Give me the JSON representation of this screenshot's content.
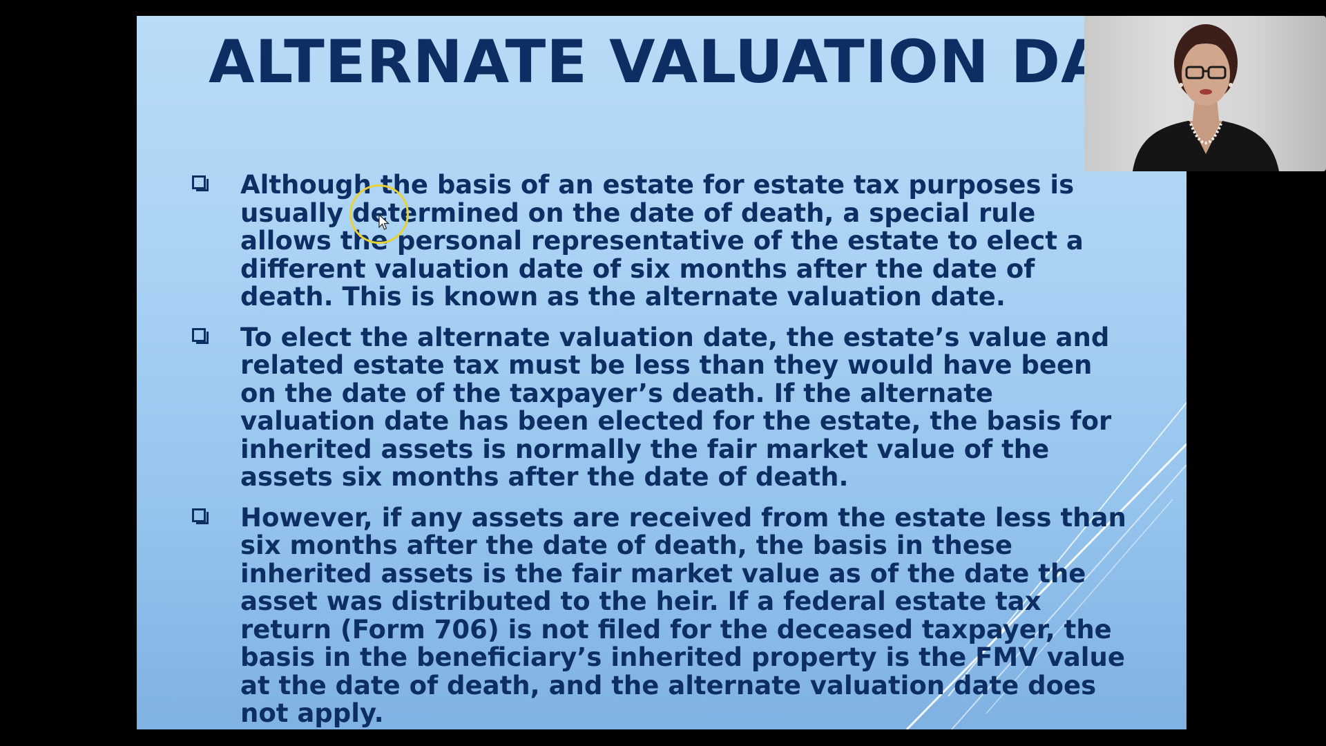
{
  "slide": {
    "title": "ALTERNATE VALUATION DATE",
    "bullets": [
      {
        "text": "Although the basis of an estate for estate tax purposes is usually determined on the date of death, a special rule allows the personal representative of the estate to elect a different valuation date of six months after the date of death. This is known as the alternate valuation date."
      },
      {
        "text": "To elect the alternate valuation date, the estate’s value and related estate tax must be less than they would have been on the date of the taxpayer’s death. If the alternate valuation date has been elected for the estate, the basis for inherited assets is normally the fair market value of the assets six months after the date of death."
      },
      {
        "text": "However, if any assets are received from the estate less than six months after the date of death, the basis in these inherited assets is the fair market value as of the date the asset was distributed to the heir. If a federal estate tax return (Form 706) is not filed for the deceased taxpayer, the basis in the beneficiary’s inherited property is the FMV value at the date of death, and the alternate valuation date does not apply."
      }
    ]
  },
  "colors": {
    "title": "#0d2e63",
    "body_text": "#0d2e63",
    "slide_bg_top": "#b9dcf7",
    "slide_bg_bottom": "#7fb1e2",
    "cursor_highlight": "#e8d233",
    "letterbox": "#000000"
  },
  "icons": {
    "bullet": "checkbox-square-icon",
    "cursor": "mouse-pointer-icon"
  }
}
